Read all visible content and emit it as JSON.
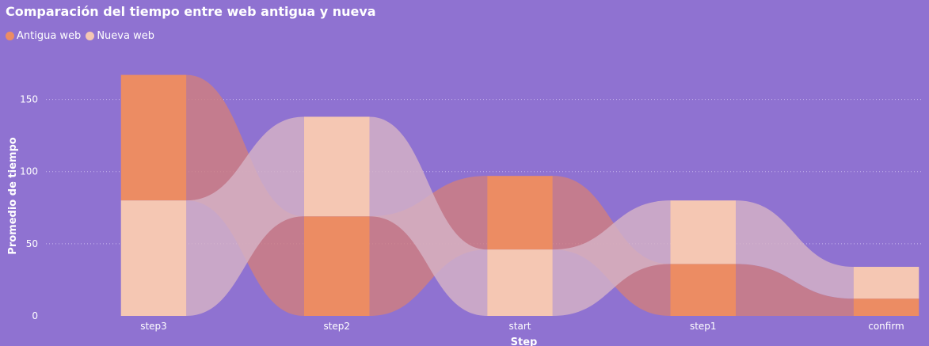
{
  "chart_data": {
    "type": "bar",
    "subtype": "ribbon-stacked-column",
    "title": "Comparación del tiempo entre web antigua y nueva",
    "xlabel": "Step",
    "ylabel": "Promedio de tiempo",
    "categories": [
      "step3",
      "step2",
      "start",
      "step1",
      "confirm"
    ],
    "series": [
      {
        "name": "Antigua web",
        "color": "#ec8c63",
        "values": [
          87,
          69,
          51,
          36,
          12
        ]
      },
      {
        "name": "Nueva web",
        "color": "#f5c7b3",
        "values": [
          80,
          69,
          46,
          44,
          22
        ]
      }
    ],
    "ylim": [
      0,
      175
    ],
    "yticks": [
      0,
      50,
      100,
      150
    ],
    "grid": true,
    "legend_position": "top-left"
  }
}
